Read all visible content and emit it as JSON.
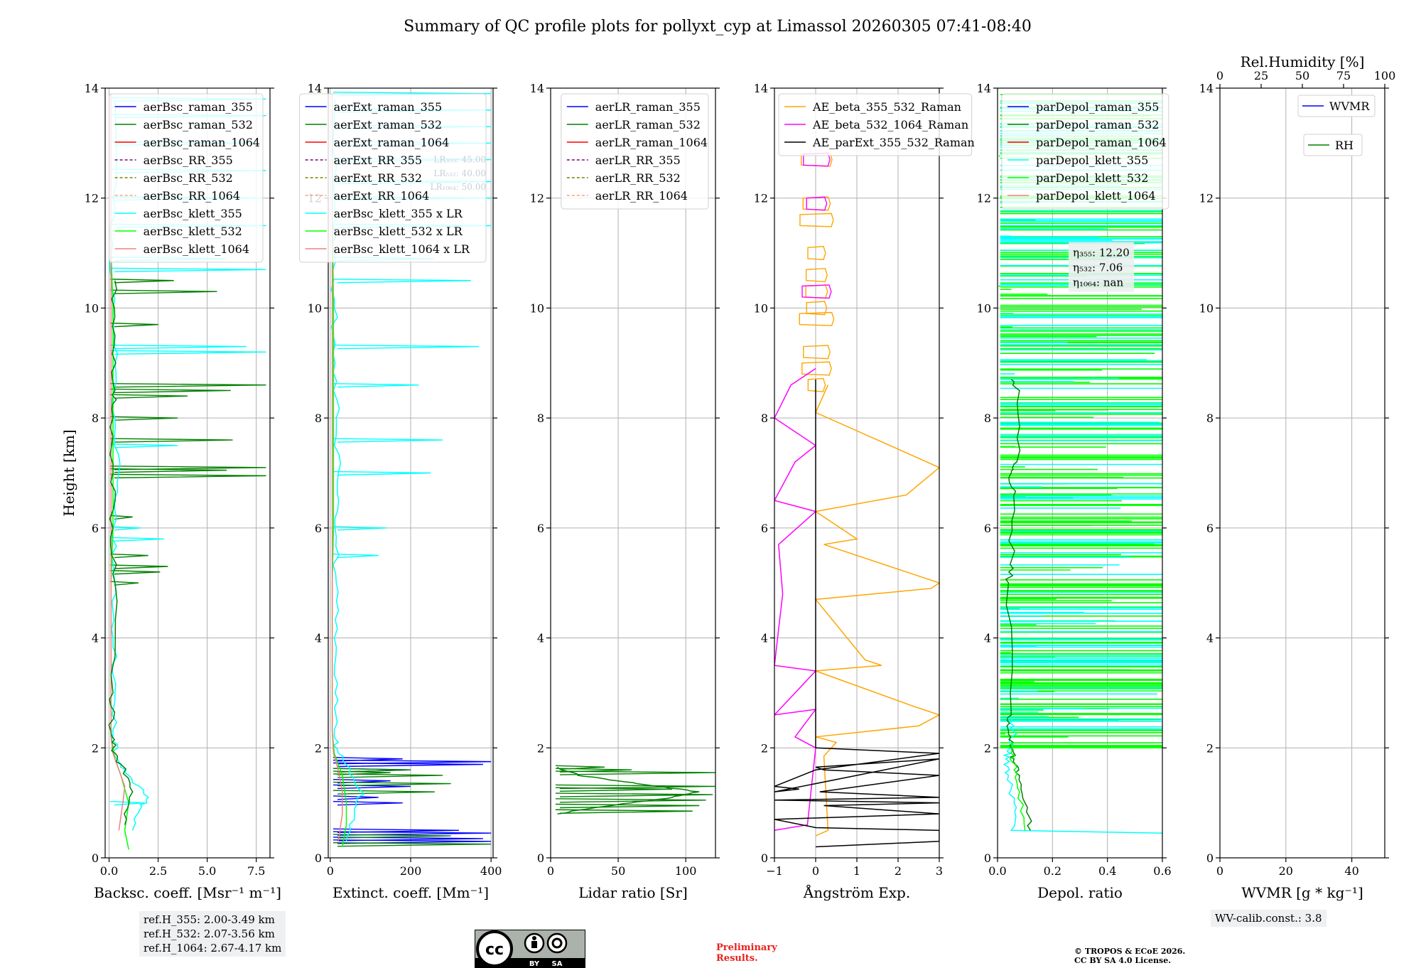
{
  "title": "Summary of QC profile plots for pollyxt_cyp at Limassol 20260305 07:41-08:40",
  "colors": {
    "aerBsc_raman_355": "#0000ff",
    "aerBsc_raman_532": "#008000",
    "aerBsc_raman_1064": "#ff0000",
    "aerBsc_RR_355": "#800080",
    "aerBsc_RR_532": "#808000",
    "aerBsc_RR_1064": "#ffa07a",
    "aerBsc_klett_355": "#00ffff",
    "aerBsc_klett_532": "#00ff00",
    "aerBsc_klett_1064": "#f08080",
    "ae_beta_355_532": "#ffa500",
    "ae_beta_532_1064": "#ff00ff",
    "ae_parExt": "#000000",
    "wvmr": "#0000ff",
    "rh": "#008000",
    "prelim": "#e8211d"
  },
  "chart_data": [
    {
      "type": "line",
      "id": "bsc",
      "xlabel": "Backsc. coeff. [Msr⁻¹ m⁻¹]",
      "ylabel": "Height [km]",
      "xlim": [
        -0.2,
        8.2
      ],
      "ylim": [
        0,
        14
      ],
      "xticks": [
        0,
        2.5,
        5,
        7.5
      ],
      "xticklabels": [
        "0.0",
        "2.5",
        "5.0",
        "7.5"
      ],
      "yticks": [
        0,
        2,
        4,
        6,
        8,
        10,
        12,
        14
      ],
      "legend": [
        "aerBsc_raman_355",
        "aerBsc_raman_532",
        "aerBsc_raman_1064",
        "aerBsc_RR_355",
        "aerBsc_RR_532",
        "aerBsc_RR_1064",
        "aerBsc_klett_355",
        "aerBsc_klett_532",
        "aerBsc_klett_1064"
      ],
      "legend_position": "top-right",
      "series": [
        {
          "name": "aerBsc_klett_355",
          "noise": true,
          "x": [
            1.2,
            1.6,
            2.0,
            1.0,
            0.4,
            0.2,
            0.3,
            0.2,
            0.3,
            0.2,
            0.5,
            0.3,
            0.3,
            0.2,
            0.1,
            0.2,
            0.3
          ],
          "y": [
            0.5,
            0.9,
            1.1,
            1.5,
            1.8,
            2.2,
            3.0,
            4.0,
            5.0,
            6.0,
            7.0,
            8.0,
            9.0,
            10.0,
            11.0,
            12.0,
            13.8
          ]
        },
        {
          "name": "aerBsc_klett_532",
          "noise": false,
          "x": [
            1.0,
            0.8,
            1.0,
            0.6,
            0.3,
            0.1,
            0.1,
            0.1,
            0.1,
            0.2,
            0.2,
            0.2,
            0.2,
            0.2,
            0.1,
            0.1,
            0.1
          ],
          "y": [
            0.15,
            0.5,
            1.0,
            1.5,
            1.8,
            2.2,
            3.0,
            4.0,
            5.0,
            6.0,
            7.0,
            8.0,
            9.0,
            10.0,
            11.0,
            12.0,
            13.9
          ]
        },
        {
          "name": "aerBsc_klett_1064",
          "noise": false,
          "x": [
            0.5,
            0.7,
            0.8,
            0.5,
            0.2,
            0.1,
            0.1,
            0.1,
            0.1,
            0.1,
            0.1,
            0.1,
            0.1,
            0.1
          ],
          "y": [
            0.5,
            1.0,
            1.3,
            1.6,
            1.9,
            2.2,
            3.0,
            5.0,
            7.0,
            9.0,
            10.0,
            11.0,
            12.0,
            13.9
          ]
        },
        {
          "name": "aerBsc_raman_532",
          "noise": true,
          "x": [
            0.8,
            1.2,
            0.6,
            0.2,
            0.1,
            0.2,
            0.3,
            0.2,
            0.2,
            0.2,
            0.3,
            0.3,
            0.3
          ],
          "y": [
            0.6,
            1.2,
            1.7,
            2.0,
            2.3,
            3.0,
            5.0,
            6.0,
            7.0,
            8.0,
            8.5,
            9.5,
            10.5
          ]
        }
      ],
      "spikes": [
        {
          "name": "aerBsc_raman_532",
          "y": [
            5.3,
            5.2,
            5.0,
            5.5,
            6.2,
            6.95,
            7.05,
            7.1,
            7.6,
            8.0,
            8.4,
            8.5,
            8.6,
            9.7,
            10.3,
            10.5
          ],
          "x": [
            3.0,
            2.6,
            1.5,
            2.0,
            1.2,
            8.0,
            6.0,
            8.0,
            6.3,
            3.5,
            4.0,
            6.2,
            8.0,
            2.5,
            5.5,
            3.3
          ]
        },
        {
          "name": "aerBsc_klett_355",
          "y": [
            1.0,
            5.8,
            6.0,
            7.5,
            9.2,
            9.3,
            10.7,
            10.9,
            11.5,
            12.0,
            12.5,
            13.0,
            13.5,
            13.8
          ],
          "x": [
            1.8,
            2.8,
            1.6,
            3.5,
            8.0,
            7.0,
            8.0,
            6.0,
            8.0,
            7.8,
            8.0,
            7.5,
            8.0,
            8.0
          ]
        }
      ],
      "annotation": {
        "lines": [
          "ref.H_355: 2.00-3.49 km",
          "ref.H_532: 2.07-3.56 km",
          "ref.H_1064: 2.67-4.17 km"
        ]
      }
    },
    {
      "type": "line",
      "id": "ext",
      "xlabel": "Extinct. coeff. [Mm⁻¹]",
      "xlim": [
        -5,
        405
      ],
      "ylim": [
        0,
        14
      ],
      "xticks": [
        0,
        200,
        400
      ],
      "xticklabels": [
        "0",
        "200",
        "400"
      ],
      "yticks": [
        0,
        2,
        4,
        6,
        8,
        10,
        12,
        14
      ],
      "legend": [
        "aerExt_raman_355",
        "aerExt_raman_532",
        "aerExt_raman_1064",
        "aerExt_RR_355",
        "aerExt_RR_532",
        "aerExt_RR_1064",
        "aerBsc_klett_355 x LR",
        "aerBsc_klett_532 x LR",
        "aerBsc_klett_1064 x LR"
      ],
      "legend_colors": [
        "aerBsc_raman_355",
        "aerBsc_raman_532",
        "aerBsc_raman_1064",
        "aerBsc_RR_355",
        "aerBsc_RR_532",
        "aerBsc_RR_1064",
        "aerBsc_klett_355",
        "aerBsc_klett_532",
        "aerBsc_klett_1064"
      ],
      "legend_position": "top-right",
      "lr_labels": [
        "LR₃₅₅: 45.00",
        "LR₅₃₂: 40.00",
        "LR₁₀₆₄: 50.00"
      ],
      "series": [
        {
          "name": "aerBsc_klett_355",
          "noise": true,
          "x": [
            40,
            60,
            80,
            50,
            20,
            10,
            12,
            10,
            15,
            12,
            20,
            15,
            12,
            10,
            10,
            10,
            12
          ],
          "y": [
            0.3,
            0.9,
            1.2,
            1.6,
            1.9,
            2.2,
            3.0,
            4.0,
            5.0,
            6.0,
            7.0,
            8.0,
            9.0,
            10.0,
            11.0,
            12.0,
            13.8
          ]
        },
        {
          "name": "aerBsc_klett_532",
          "noise": false,
          "x": [
            30,
            40,
            40,
            30,
            10,
            5,
            5,
            5,
            5,
            8,
            8,
            8,
            8,
            8,
            5,
            5
          ],
          "y": [
            0.2,
            0.6,
            1.0,
            1.5,
            1.9,
            2.3,
            3.0,
            4.0,
            5.0,
            6.0,
            7.0,
            8.0,
            9.0,
            10.0,
            12.0,
            13.9
          ]
        },
        {
          "name": "aerBsc_klett_1064",
          "noise": false,
          "x": [
            20,
            30,
            30,
            20,
            8,
            5,
            5,
            5,
            5,
            5,
            5
          ],
          "y": [
            0.3,
            0.8,
            1.2,
            1.6,
            1.9,
            2.3,
            4.0,
            7.0,
            10.0,
            12.0,
            13.9
          ]
        }
      ],
      "spikes": [
        {
          "name": "aerBsc_raman_355",
          "y": [
            0.3,
            0.35,
            0.45,
            0.5,
            1.0,
            1.1,
            1.3,
            1.4,
            1.6,
            1.7,
            1.75,
            1.8
          ],
          "x": [
            400,
            380,
            400,
            320,
            180,
            120,
            200,
            150,
            200,
            380,
            400,
            180
          ]
        },
        {
          "name": "aerBsc_raman_532",
          "y": [
            0.25,
            0.4,
            1.2,
            1.35,
            1.5,
            1.55,
            1.6
          ],
          "x": [
            400,
            300,
            260,
            300,
            280,
            150,
            200
          ]
        },
        {
          "name": "aerBsc_klett_355",
          "y": [
            5.5,
            6.0,
            7.0,
            7.6,
            8.6,
            9.3,
            10.5,
            10.9,
            11.5,
            12.0,
            12.3,
            12.7,
            13.0,
            13.3,
            13.6,
            13.9
          ],
          "x": [
            120,
            140,
            250,
            280,
            220,
            370,
            350,
            260,
            400,
            400,
            400,
            400,
            400,
            400,
            400,
            400
          ]
        }
      ]
    },
    {
      "type": "line",
      "id": "lr",
      "xlabel": "Lidar ratio [Sr]",
      "xlim": [
        0,
        122
      ],
      "ylim": [
        0,
        14
      ],
      "xticks": [
        0,
        50,
        100
      ],
      "xticklabels": [
        "0",
        "50",
        "100"
      ],
      "yticks": [
        0,
        2,
        4,
        6,
        8,
        10,
        12,
        14
      ],
      "legend": [
        "aerLR_raman_355",
        "aerLR_raman_532",
        "aerLR_raman_1064",
        "aerLR_RR_355",
        "aerLR_RR_532",
        "aerLR_RR_1064"
      ],
      "legend_colors": [
        "aerBsc_raman_355",
        "aerBsc_raman_532",
        "aerBsc_raman_1064",
        "aerBsc_RR_355",
        "aerBsc_RR_532",
        "aerBsc_RR_1064"
      ],
      "legend_position": "top-right",
      "series": [
        {
          "name": "aerBsc_raman_532",
          "noise": true,
          "x": [
            5,
            30,
            60,
            90,
            110,
            80,
            50,
            20,
            5
          ],
          "y": [
            0.8,
            0.9,
            1.0,
            1.1,
            1.2,
            1.3,
            1.4,
            1.5,
            1.65
          ]
        }
      ],
      "spikes": [
        {
          "name": "aerBsc_raman_532",
          "y": [
            0.85,
            0.95,
            1.05,
            1.15,
            1.25,
            1.3,
            1.55,
            1.6,
            1.65
          ],
          "x": [
            105,
            110,
            115,
            120,
            90,
            122,
            122,
            60,
            40
          ]
        }
      ]
    },
    {
      "type": "line",
      "id": "ae",
      "xlabel": "Ångström Exp.",
      "xlim": [
        -1,
        3
      ],
      "ylim": [
        0,
        14
      ],
      "xticks": [
        -1,
        0,
        1,
        2,
        3
      ],
      "xticklabels": [
        "−1",
        "0",
        "1",
        "2",
        "3"
      ],
      "yticks": [
        0,
        2,
        4,
        6,
        8,
        10,
        12,
        14
      ],
      "legend": [
        "AE_beta_355_532_Raman",
        "AE_beta_532_1064_Raman",
        "AE_parExt_355_532_Raman"
      ],
      "legend_colors": [
        "ae_beta_355_532",
        "ae_beta_532_1064",
        "ae_parExt"
      ],
      "legend_position": "top-left",
      "series": [
        {
          "name": "ae_beta_355_532",
          "noise": false,
          "x": [
            0,
            0.3,
            0.2,
            0.5,
            0,
            2.5,
            3,
            2.4,
            0,
            1.6,
            1.2,
            0,
            2.8,
            3,
            0.2,
            1.0,
            0.2,
            0,
            2.2,
            3,
            0,
            0.3
          ],
          "y": [
            0.4,
            0.5,
            1.85,
            2.1,
            2.2,
            2.4,
            2.6,
            2.75,
            3.4,
            3.5,
            3.6,
            4.7,
            4.9,
            5.0,
            5.7,
            5.8,
            6.2,
            6.3,
            6.6,
            7.1,
            8.1,
            8.6
          ]
        },
        {
          "name": "ae_beta_532_1064",
          "noise": false,
          "x": [
            -1,
            -0.2,
            0,
            -0.5,
            0,
            -1,
            0,
            -1,
            -0.8,
            -0.9,
            0,
            -1,
            -0.5,
            0,
            -1,
            -0.6,
            0
          ],
          "y": [
            0.5,
            0.6,
            2.0,
            2.2,
            2.7,
            2.6,
            3.4,
            3.5,
            4.8,
            5.7,
            6.3,
            6.5,
            7.2,
            7.5,
            8.0,
            8.6,
            8.9
          ]
        },
        {
          "name": "ae_parExt",
          "noise": false,
          "x": [
            0,
            3,
            3,
            0,
            -1,
            3,
            0.2,
            3,
            -1,
            3,
            0.1,
            3,
            0.2,
            0,
            3,
            -1,
            -0.4,
            -1,
            0,
            3,
            0
          ],
          "y": [
            0.2,
            0.3,
            0.5,
            0.55,
            0.7,
            0.8,
            0.95,
            1.0,
            1.05,
            1.1,
            1.2,
            1.5,
            1.6,
            1.65,
            1.8,
            1.2,
            1.25,
            1.3,
            1.6,
            1.9,
            2.0
          ]
        }
      ],
      "blobs": [
        {
          "name": "ae_beta_355_532",
          "y": [
            8.6,
            8.9,
            9.2,
            9.8,
            10.0,
            10.3,
            10.6,
            11.0,
            11.6,
            11.9,
            12.7
          ]
        },
        {
          "name": "ae_beta_532_1064",
          "y": [
            10.3,
            11.9,
            12.7
          ]
        }
      ],
      "zero_line": true
    },
    {
      "type": "line",
      "id": "depol",
      "xlabel": "Depol. ratio",
      "xlim": [
        0,
        0.6
      ],
      "ylim": [
        0,
        14
      ],
      "xticks": [
        0,
        0.2,
        0.4,
        0.6
      ],
      "xticklabels": [
        "0.0",
        "0.2",
        "0.4",
        "0.6"
      ],
      "yticks": [
        0,
        2,
        4,
        6,
        8,
        10,
        12,
        14
      ],
      "legend": [
        "parDepol_raman_355",
        "parDepol_raman_532",
        "parDepol_raman_1064",
        "parDepol_klett_355",
        "parDepol_klett_532",
        "parDepol_klett_1064"
      ],
      "legend_colors": [
        "aerBsc_raman_355",
        "aerBsc_raman_532",
        "aerBsc_raman_1064",
        "aerBsc_klett_355",
        "aerBsc_klett_532",
        "aerBsc_klett_1064"
      ],
      "legend_position": "top-left",
      "series": [
        {
          "name": "aerBsc_klett_355",
          "noise": true,
          "x": [
            0.6,
            0.05,
            0.06,
            0.04,
            0.03,
            0.05,
            0.06,
            0.05
          ],
          "y": [
            0.45,
            0.5,
            1.0,
            1.5,
            1.8,
            2.0,
            2.3,
            2.6
          ]
        },
        {
          "name": "aerBsc_raman_532",
          "noise": true,
          "x": [
            0.12,
            0.1,
            0.08,
            0.06,
            0.05,
            0.04,
            0.05,
            0.04,
            0.05,
            0.06,
            0.05,
            0.07,
            0.08,
            0.05
          ],
          "y": [
            0.5,
            1.0,
            1.5,
            1.8,
            2.0,
            2.3,
            2.6,
            5.0,
            5.4,
            6.5,
            7.0,
            7.2,
            8.5,
            8.7
          ]
        },
        {
          "name": "aerBsc_klett_532",
          "noise": true,
          "x": [
            0.1,
            0.08,
            0.06,
            0.05,
            0.06
          ],
          "y": [
            0.5,
            1.2,
            1.6,
            1.9,
            2.1
          ]
        }
      ],
      "dense_bands": [
        {
          "name": "aerBsc_klett_532",
          "ymin": 2.0,
          "ymax": 13.9,
          "xmax": 0.6,
          "count": 260
        },
        {
          "name": "aerBsc_klett_355",
          "ymin": 2.3,
          "ymax": 13.9,
          "xmax": 0.6,
          "count": 120
        }
      ],
      "eta_labels": [
        "η₃₅₅: 12.20",
        "η₅₃₂: 7.06",
        "η₁₀₆₄: nan"
      ]
    },
    {
      "type": "line",
      "id": "wv",
      "xlabel": "WVMR [g * kg⁻¹]",
      "top_xlabel": "Rel.Humidity [%]",
      "xlim": [
        0,
        50
      ],
      "ylim": [
        0,
        14
      ],
      "xticks": [
        0,
        20,
        40
      ],
      "xticklabels": [
        "0",
        "20",
        "40"
      ],
      "top_xticks": [
        0,
        25,
        50,
        75,
        100
      ],
      "top_xticklabels": [
        "0",
        "25",
        "50",
        "75",
        "100"
      ],
      "yticks": [
        0,
        2,
        4,
        6,
        8,
        10,
        12,
        14
      ],
      "legend": [
        "WVMR",
        "RH"
      ],
      "legend_colors": [
        "wvmr",
        "rh"
      ],
      "legend_position": "top-right",
      "series": [],
      "annotation": {
        "lines": [
          "WV-calib.const.: 3.8"
        ]
      }
    }
  ],
  "license": {
    "cc": "cc",
    "by": "BY",
    "sa": "SA"
  },
  "preliminary": [
    "Preliminary",
    "Results."
  ],
  "copyright": [
    "© TROPOS & ECoE 2026.",
    "CC BY SA 4.0 License."
  ]
}
